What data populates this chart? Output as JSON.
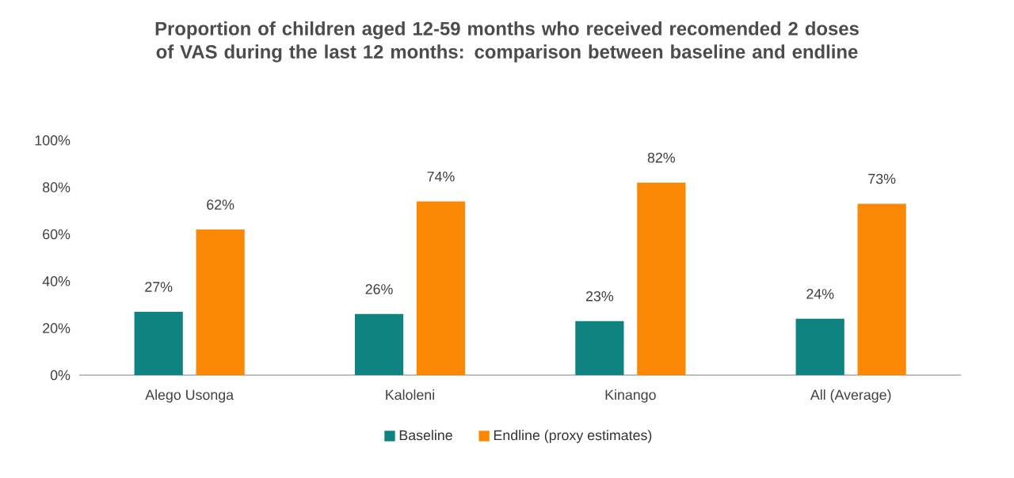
{
  "chart_data": {
    "type": "bar",
    "title": "Proportion of children aged 12-59 months who received recomended 2 doses of VAS during the last 12 months: comparison between baseline and endline",
    "categories": [
      "Alego Usonga",
      "Kaloleni",
      "Kinango",
      "All (Average)"
    ],
    "series": [
      {
        "name": "Baseline",
        "color": "#0e8380",
        "values": [
          27,
          26,
          23,
          24
        ],
        "value_labels": [
          "27%",
          "26%",
          "23%",
          "24%"
        ]
      },
      {
        "name": "Endline (proxy estimates)",
        "color": "#fb8805",
        "values": [
          62,
          74,
          82,
          73
        ],
        "value_labels": [
          "62%",
          "74%",
          "82%",
          "73%"
        ]
      }
    ],
    "ylim": [
      0,
      100
    ],
    "yticks": [
      {
        "value": 0,
        "label": "0%"
      },
      {
        "value": 20,
        "label": "20%"
      },
      {
        "value": 40,
        "label": "40%"
      },
      {
        "value": 60,
        "label": "60%"
      },
      {
        "value": 80,
        "label": "80%"
      },
      {
        "value": 100,
        "label": "100%"
      }
    ],
    "grid": false,
    "legend": "bottom"
  }
}
